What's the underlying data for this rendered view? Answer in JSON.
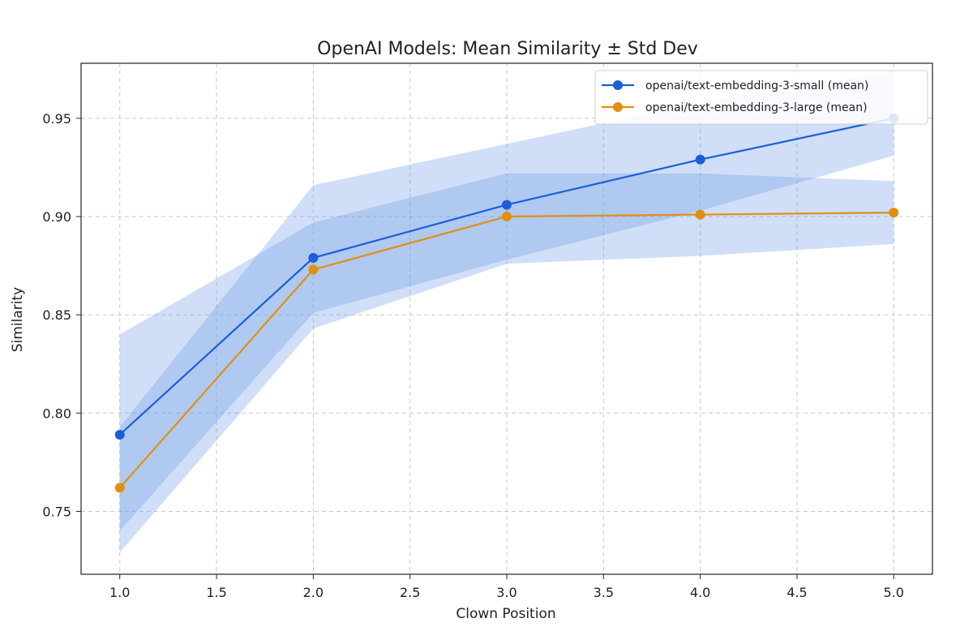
{
  "chart_data": {
    "type": "line",
    "title": "OpenAI Models: Mean Similarity ± Std Dev",
    "xlabel": "Clown Position",
    "ylabel": "Similarity",
    "xlim": [
      0.8,
      5.2
    ],
    "ylim": [
      0.718,
      0.978
    ],
    "xticks": [
      "1.0",
      "1.5",
      "2.0",
      "2.5",
      "3.0",
      "3.5",
      "4.0",
      "4.5",
      "5.0"
    ],
    "yticks": [
      "0.75",
      "0.80",
      "0.85",
      "0.90",
      "0.95"
    ],
    "grid": true,
    "legend_position": "top-right",
    "x": [
      1,
      2,
      3,
      4,
      5
    ],
    "series": [
      {
        "name": "openai/text-embedding-3-small (mean)",
        "color": "#1a5fd6",
        "band_color": "#6d9be6",
        "values": [
          0.789,
          0.879,
          0.906,
          0.929,
          0.95
        ],
        "lower": [
          0.74,
          0.851,
          0.878,
          0.903,
          0.931
        ],
        "upper": [
          0.793,
          0.916,
          0.937,
          0.958,
          0.974
        ]
      },
      {
        "name": "openai/text-embedding-3-large (mean)",
        "color": "#e0900f",
        "band_color": "#6d9be6",
        "values": [
          0.762,
          0.873,
          0.9,
          0.901,
          0.902
        ],
        "lower": [
          0.729,
          0.843,
          0.876,
          0.88,
          0.886
        ],
        "upper": [
          0.84,
          0.897,
          0.922,
          0.922,
          0.918
        ]
      }
    ]
  }
}
